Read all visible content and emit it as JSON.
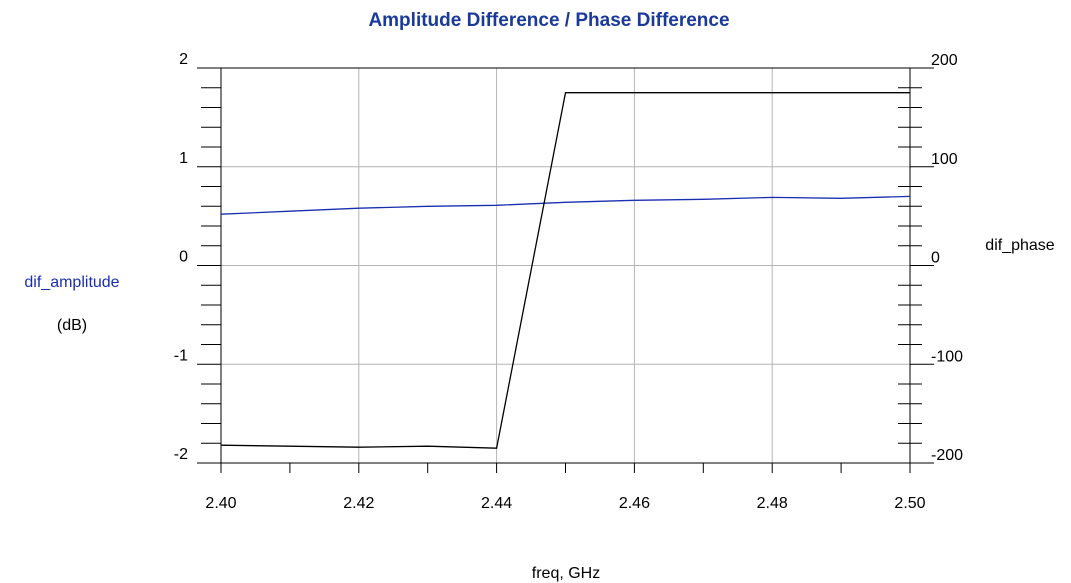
{
  "chart_data": {
    "type": "line",
    "title": "Amplitude Difference / Phase Difference",
    "xlabel": "freq, GHz",
    "ylabel_left": "dif_amplitude",
    "ylabel_left_unit": "(dB)",
    "ylabel_right": "dif_phase",
    "xlim": [
      2.4,
      2.5
    ],
    "ylim_left": [
      -2,
      2
    ],
    "ylim_right": [
      -200,
      200
    ],
    "x_ticks": [
      "2.40",
      "2.42",
      "2.44",
      "2.46",
      "2.48",
      "2.50"
    ],
    "y_left_ticks": [
      "2",
      "1",
      "0",
      "-1",
      "-2"
    ],
    "y_right_ticks": [
      "200",
      "100",
      "0",
      "-100",
      "-200"
    ],
    "grid": true,
    "colors": {
      "title": "#1a3a9a",
      "amplitude": "#1a2fb0",
      "phase": "#000000",
      "grid": "#b4b4b4"
    },
    "series": [
      {
        "name": "dif_amplitude",
        "axis": "left",
        "x": [
          2.4,
          2.41,
          2.42,
          2.43,
          2.44,
          2.45,
          2.46,
          2.47,
          2.48,
          2.49,
          2.5
        ],
        "values": [
          0.52,
          0.55,
          0.58,
          0.6,
          0.61,
          0.64,
          0.66,
          0.67,
          0.69,
          0.68,
          0.7
        ]
      },
      {
        "name": "dif_phase",
        "axis": "right",
        "x": [
          2.4,
          2.41,
          2.42,
          2.43,
          2.44,
          2.45,
          2.46,
          2.47,
          2.48,
          2.49,
          2.5
        ],
        "values": [
          -182,
          -183,
          -184,
          -183,
          -185,
          175,
          175,
          175,
          175,
          175,
          175
        ]
      }
    ]
  }
}
